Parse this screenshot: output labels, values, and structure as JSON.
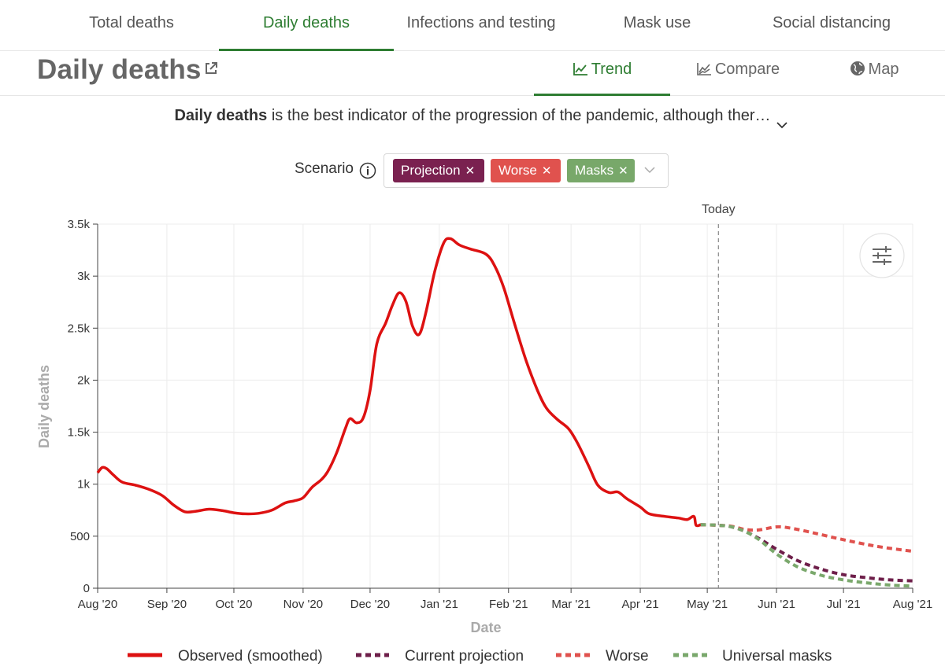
{
  "topnav": {
    "tabs": [
      {
        "label": "Total deaths"
      },
      {
        "label": "Daily deaths"
      },
      {
        "label": "Infections and testing"
      },
      {
        "label": "Mask use"
      },
      {
        "label": "Social distancing"
      }
    ],
    "active_index": 1
  },
  "header": {
    "title": "Daily deaths",
    "view_tabs": [
      {
        "label": "Trend",
        "icon": "trend-icon"
      },
      {
        "label": "Compare",
        "icon": "compare-icon"
      },
      {
        "label": "Map",
        "icon": "globe-icon"
      }
    ],
    "active_view": 0
  },
  "description": {
    "bold": "Daily deaths",
    "rest": " is the best indicator of the progression of the pandemic, although ther…"
  },
  "scenario": {
    "label": "Scenario",
    "chips": [
      {
        "label": "Projection",
        "color": "#7a2150"
      },
      {
        "label": "Worse",
        "color": "#e0524e"
      },
      {
        "label": "Masks",
        "color": "#78a86a"
      }
    ]
  },
  "colors": {
    "accent_green": "#2e7d32",
    "observed": "#dd1111",
    "projection": "#6e1f4a",
    "worse": "#e0524e",
    "masks": "#7aa86c"
  },
  "chart_data": {
    "type": "line",
    "xlabel": "Date",
    "ylabel": "Daily deaths",
    "ylim": [
      0,
      3500
    ],
    "yticks": [
      {
        "v": 0,
        "label": "0"
      },
      {
        "v": 500,
        "label": "500"
      },
      {
        "v": 1000,
        "label": "1k"
      },
      {
        "v": 1500,
        "label": "1.5k"
      },
      {
        "v": 2000,
        "label": "2k"
      },
      {
        "v": 2500,
        "label": "2.5k"
      },
      {
        "v": 3000,
        "label": "3k"
      },
      {
        "v": 3500,
        "label": "3.5k"
      }
    ],
    "xlim": [
      "2020-08-01",
      "2021-08-01"
    ],
    "xticks": [
      {
        "d": "2020-08-01",
        "label": "Aug '20"
      },
      {
        "d": "2020-09-01",
        "label": "Sep '20"
      },
      {
        "d": "2020-10-01",
        "label": "Oct '20"
      },
      {
        "d": "2020-11-01",
        "label": "Nov '20"
      },
      {
        "d": "2020-12-01",
        "label": "Dec '20"
      },
      {
        "d": "2021-01-01",
        "label": "Jan '21"
      },
      {
        "d": "2021-02-01",
        "label": "Feb '21"
      },
      {
        "d": "2021-03-01",
        "label": "Mar '21"
      },
      {
        "d": "2021-04-01",
        "label": "Apr '21"
      },
      {
        "d": "2021-05-01",
        "label": "May '21"
      },
      {
        "d": "2021-06-01",
        "label": "Jun '21"
      },
      {
        "d": "2021-07-01",
        "label": "Jul '21"
      },
      {
        "d": "2021-08-01",
        "label": "Aug '21"
      }
    ],
    "grid": true,
    "today": {
      "date": "2021-05-06",
      "label": "Today"
    },
    "legend_position": "bottom",
    "series": [
      {
        "name": "Observed (smoothed)",
        "style": "solid",
        "color": "#dd1111",
        "points": [
          [
            "2020-08-01",
            1110
          ],
          [
            "2020-08-03",
            1160
          ],
          [
            "2020-08-05",
            1150
          ],
          [
            "2020-08-08",
            1090
          ],
          [
            "2020-08-12",
            1020
          ],
          [
            "2020-08-18",
            990
          ],
          [
            "2020-08-24",
            950
          ],
          [
            "2020-08-30",
            890
          ],
          [
            "2020-09-04",
            800
          ],
          [
            "2020-09-09",
            735
          ],
          [
            "2020-09-14",
            740
          ],
          [
            "2020-09-20",
            760
          ],
          [
            "2020-09-26",
            745
          ],
          [
            "2020-10-01",
            725
          ],
          [
            "2020-10-06",
            715
          ],
          [
            "2020-10-12",
            720
          ],
          [
            "2020-10-18",
            750
          ],
          [
            "2020-10-24",
            820
          ],
          [
            "2020-10-28",
            840
          ],
          [
            "2020-11-01",
            870
          ],
          [
            "2020-11-05",
            970
          ],
          [
            "2020-11-09",
            1040
          ],
          [
            "2020-11-12",
            1120
          ],
          [
            "2020-11-16",
            1300
          ],
          [
            "2020-11-20",
            1540
          ],
          [
            "2020-11-22",
            1630
          ],
          [
            "2020-11-25",
            1590
          ],
          [
            "2020-11-28",
            1640
          ],
          [
            "2020-12-01",
            1900
          ],
          [
            "2020-12-04",
            2350
          ],
          [
            "2020-12-08",
            2550
          ],
          [
            "2020-12-11",
            2720
          ],
          [
            "2020-12-14",
            2840
          ],
          [
            "2020-12-17",
            2760
          ],
          [
            "2020-12-20",
            2520
          ],
          [
            "2020-12-23",
            2440
          ],
          [
            "2020-12-26",
            2650
          ],
          [
            "2020-12-30",
            3050
          ],
          [
            "2021-01-03",
            3320
          ],
          [
            "2021-01-06",
            3360
          ],
          [
            "2021-01-10",
            3300
          ],
          [
            "2021-01-15",
            3260
          ],
          [
            "2021-01-22",
            3210
          ],
          [
            "2021-01-26",
            3090
          ],
          [
            "2021-01-30",
            2880
          ],
          [
            "2021-02-04",
            2520
          ],
          [
            "2021-02-09",
            2180
          ],
          [
            "2021-02-14",
            1900
          ],
          [
            "2021-02-18",
            1730
          ],
          [
            "2021-02-23",
            1620
          ],
          [
            "2021-02-28",
            1530
          ],
          [
            "2021-03-04",
            1390
          ],
          [
            "2021-03-09",
            1170
          ],
          [
            "2021-03-13",
            990
          ],
          [
            "2021-03-18",
            920
          ],
          [
            "2021-03-22",
            925
          ],
          [
            "2021-03-26",
            860
          ],
          [
            "2021-04-01",
            780
          ],
          [
            "2021-04-05",
            715
          ],
          [
            "2021-04-12",
            690
          ],
          [
            "2021-04-18",
            675
          ],
          [
            "2021-04-22",
            660
          ],
          [
            "2021-04-25",
            690
          ],
          [
            "2021-04-26",
            605
          ],
          [
            "2021-04-28",
            610
          ]
        ]
      },
      {
        "name": "Current projection",
        "style": "dashed",
        "color": "#6e1f4a",
        "points": [
          [
            "2021-04-28",
            610
          ],
          [
            "2021-05-06",
            605
          ],
          [
            "2021-05-12",
            590
          ],
          [
            "2021-05-18",
            545
          ],
          [
            "2021-05-24",
            480
          ],
          [
            "2021-06-01",
            375
          ],
          [
            "2021-06-10",
            270
          ],
          [
            "2021-06-20",
            190
          ],
          [
            "2021-07-01",
            130
          ],
          [
            "2021-07-12",
            100
          ],
          [
            "2021-07-22",
            80
          ],
          [
            "2021-08-01",
            70
          ]
        ]
      },
      {
        "name": "Worse",
        "style": "dashed",
        "color": "#e0524e",
        "points": [
          [
            "2021-04-28",
            610
          ],
          [
            "2021-05-06",
            605
          ],
          [
            "2021-05-12",
            595
          ],
          [
            "2021-05-18",
            565
          ],
          [
            "2021-05-24",
            560
          ],
          [
            "2021-06-01",
            590
          ],
          [
            "2021-06-08",
            575
          ],
          [
            "2021-06-18",
            530
          ],
          [
            "2021-06-28",
            480
          ],
          [
            "2021-07-08",
            435
          ],
          [
            "2021-07-18",
            395
          ],
          [
            "2021-08-01",
            355
          ]
        ]
      },
      {
        "name": "Universal masks",
        "style": "dashed",
        "color": "#7aa86c",
        "points": [
          [
            "2021-04-28",
            610
          ],
          [
            "2021-05-06",
            605
          ],
          [
            "2021-05-12",
            590
          ],
          [
            "2021-05-18",
            545
          ],
          [
            "2021-05-24",
            470
          ],
          [
            "2021-06-01",
            330
          ],
          [
            "2021-06-10",
            210
          ],
          [
            "2021-06-20",
            130
          ],
          [
            "2021-07-01",
            80
          ],
          [
            "2021-07-12",
            50
          ],
          [
            "2021-07-22",
            30
          ],
          [
            "2021-08-01",
            20
          ]
        ]
      }
    ]
  }
}
